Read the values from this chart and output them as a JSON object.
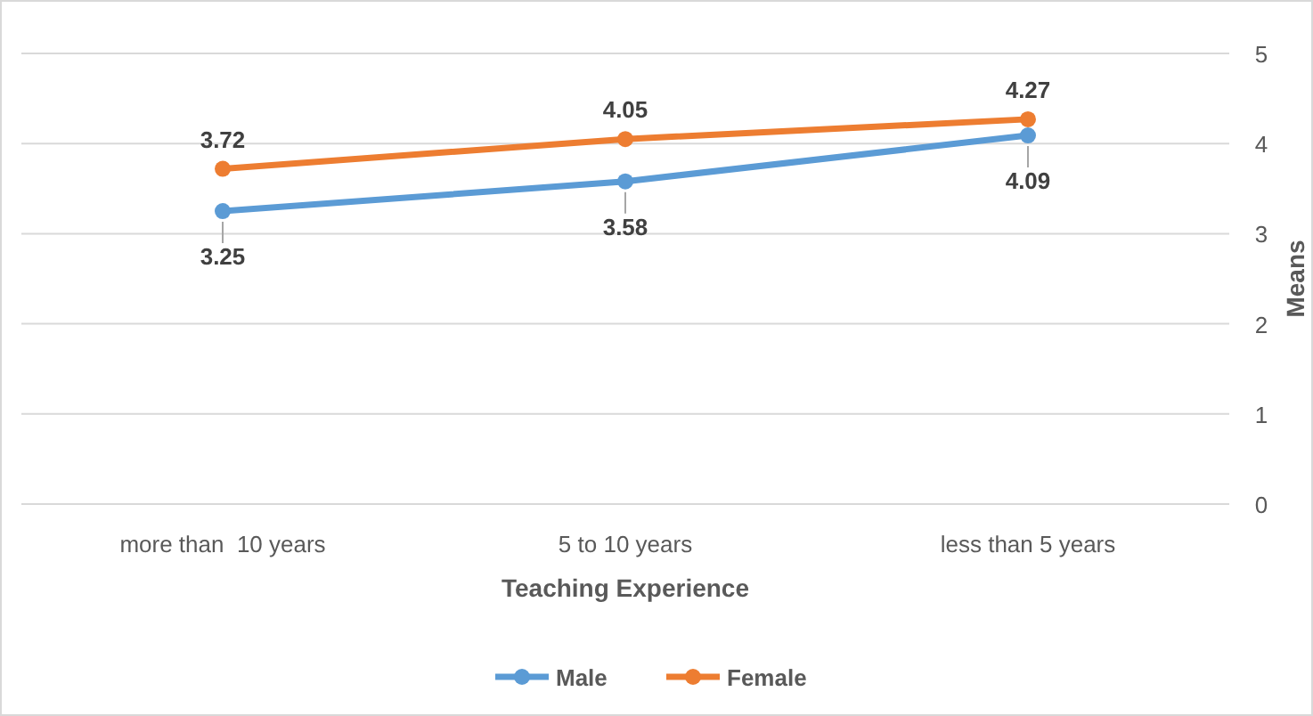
{
  "chart_data": {
    "type": "line",
    "xlabel": "Teaching Experience",
    "ylabel": "Means",
    "categories": [
      "more than  10 years",
      "5 to 10 years",
      "less than 5 years"
    ],
    "series": [
      {
        "name": "Male",
        "color": "#5b9bd5",
        "values": [
          3.25,
          3.58,
          4.09
        ]
      },
      {
        "name": "Female",
        "color": "#ed7d31",
        "values": [
          3.72,
          4.05,
          4.27
        ]
      }
    ],
    "ylim": [
      0,
      5
    ],
    "yticks": [
      0,
      1,
      2,
      3,
      4,
      5
    ],
    "grid": "y",
    "legend": "bottom",
    "marker": "circle",
    "data_labels": true
  }
}
